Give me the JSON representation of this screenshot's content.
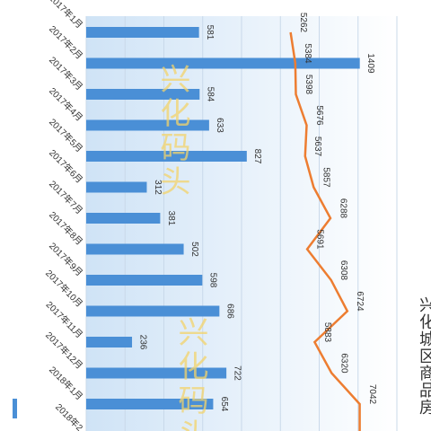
{
  "chart_data": {
    "type": "bar",
    "title": "兴化城区商品房",
    "orientation": "horizontal",
    "categories": [
      "2017年1月",
      "2017年2月",
      "2017年3月",
      "2017年4月",
      "2017年5月",
      "2017年6月",
      "2017年7月",
      "2017年8月",
      "2017年9月",
      "2017年10月",
      "2017年11月",
      "2017年12月",
      "2018年1月",
      "2018年2"
    ],
    "series": [
      {
        "type": "bar",
        "values": [
          581,
          1409,
          584,
          633,
          827,
          312,
          381,
          502,
          598,
          686,
          236,
          722,
          654,
          null
        ],
        "color": "#4a8fd6"
      },
      {
        "type": "line",
        "values": [
          5262,
          5384,
          5398,
          5676,
          5637,
          5857,
          6288,
          5691,
          6308,
          6724,
          5883,
          6320,
          7042,
          null
        ],
        "color": "#ed7d31"
      }
    ],
    "bar_axis_range": [
      0,
      1600
    ],
    "line_axis_range": [
      0,
      8000
    ],
    "legend_position": "bottom-left",
    "grid": true
  },
  "watermark": {
    "text": "兴化码头",
    "color": "#f3d36a"
  },
  "colors": {
    "band_dark": "#cfe3f6",
    "band_light": "#ffffff",
    "grid": "#c9d9ea"
  }
}
